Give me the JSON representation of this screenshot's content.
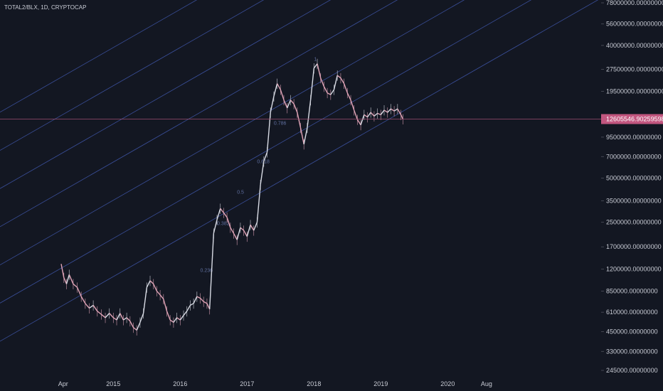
{
  "header": {
    "symbol_line": "TOTAL2/BLX, 1D, CRYPTOCAP"
  },
  "colors": {
    "background": "#131722",
    "channel_line": "#3a4f9a",
    "candle_up": "#d8dbe4",
    "candle_down": "#e2a5b8",
    "price_line": "#9e4f72",
    "price_tag": "#c2567f"
  },
  "current_price": {
    "label": "12605546.90259598",
    "value": 12605546.90259598
  },
  "chart_data": {
    "type": "line",
    "title": "",
    "symbol": "TOTAL2/BLX",
    "interval": "1D",
    "source": "CRYPTOCAP",
    "x_axis_labels": [
      "Apr",
      "2015",
      "2016",
      "2017",
      "2018",
      "2019",
      "2020",
      "Aug"
    ],
    "y_axis_labels": [
      "78000000.00000000",
      "56000000.00000000",
      "40000000.00000000",
      "27500000.00000000",
      "19500000.00000000",
      "9500000.00000000",
      "7000000.00000000",
      "5000000.00000000",
      "3500000.00000000",
      "2500000.00000000",
      "1700000.00000000",
      "1200000.00000000",
      "850000.00000000",
      "610000.00000000",
      "450000.00000000",
      "330000.00000000",
      "245000.00000000"
    ],
    "y_scale": "log",
    "fib_channel_labels": [
      "0.236",
      "0.382",
      "0.5",
      "0.618",
      "0.786",
      "1"
    ],
    "series": [
      {
        "values": [
          [
            2014.22,
            1300000
          ],
          [
            2014.26,
            1050000
          ],
          [
            2014.3,
            950000
          ],
          [
            2014.34,
            1100000
          ],
          [
            2014.4,
            950000
          ],
          [
            2014.46,
            900000
          ],
          [
            2014.52,
            780000
          ],
          [
            2014.58,
            700000
          ],
          [
            2014.64,
            650000
          ],
          [
            2014.7,
            680000
          ],
          [
            2014.76,
            620000
          ],
          [
            2014.82,
            590000
          ],
          [
            2014.88,
            560000
          ],
          [
            2014.94,
            600000
          ],
          [
            2015.0,
            560000
          ],
          [
            2015.05,
            540000
          ],
          [
            2015.1,
            600000
          ],
          [
            2015.15,
            540000
          ],
          [
            2015.2,
            560000
          ],
          [
            2015.25,
            530000
          ],
          [
            2015.3,
            480000
          ],
          [
            2015.35,
            460000
          ],
          [
            2015.4,
            520000
          ],
          [
            2015.45,
            600000
          ],
          [
            2015.5,
            900000
          ],
          [
            2015.55,
            1000000
          ],
          [
            2015.6,
            950000
          ],
          [
            2015.65,
            850000
          ],
          [
            2015.7,
            800000
          ],
          [
            2015.75,
            750000
          ],
          [
            2015.8,
            620000
          ],
          [
            2015.85,
            540000
          ],
          [
            2015.9,
            520000
          ],
          [
            2015.95,
            560000
          ],
          [
            2016.0,
            540000
          ],
          [
            2016.05,
            580000
          ],
          [
            2016.1,
            620000
          ],
          [
            2016.15,
            680000
          ],
          [
            2016.2,
            700000
          ],
          [
            2016.25,
            780000
          ],
          [
            2016.3,
            760000
          ],
          [
            2016.35,
            720000
          ],
          [
            2016.4,
            700000
          ],
          [
            2016.44,
            640000
          ],
          [
            2016.5,
            2100000
          ],
          [
            2016.55,
            2600000
          ],
          [
            2016.6,
            3100000
          ],
          [
            2016.65,
            2900000
          ],
          [
            2016.7,
            2700000
          ],
          [
            2016.75,
            2300000
          ],
          [
            2016.8,
            2100000
          ],
          [
            2016.85,
            1900000
          ],
          [
            2016.9,
            2300000
          ],
          [
            2016.95,
            2200000
          ],
          [
            2017.0,
            2000000
          ],
          [
            2017.05,
            2400000
          ],
          [
            2017.1,
            2200000
          ],
          [
            2017.15,
            2500000
          ],
          [
            2017.2,
            4500000
          ],
          [
            2017.25,
            6500000
          ],
          [
            2017.3,
            7500000
          ],
          [
            2017.35,
            14000000
          ],
          [
            2017.4,
            18000000
          ],
          [
            2017.45,
            22000000
          ],
          [
            2017.5,
            20000000
          ],
          [
            2017.55,
            17000000
          ],
          [
            2017.6,
            15000000
          ],
          [
            2017.65,
            17000000
          ],
          [
            2017.7,
            16000000
          ],
          [
            2017.75,
            14000000
          ],
          [
            2017.8,
            11000000
          ],
          [
            2017.85,
            8500000
          ],
          [
            2017.9,
            11000000
          ],
          [
            2017.95,
            17000000
          ],
          [
            2018.0,
            28000000
          ],
          [
            2018.05,
            30000000
          ],
          [
            2018.1,
            24000000
          ],
          [
            2018.15,
            21000000
          ],
          [
            2018.2,
            19000000
          ],
          [
            2018.25,
            18500000
          ],
          [
            2018.3,
            20000000
          ],
          [
            2018.35,
            25000000
          ],
          [
            2018.4,
            24000000
          ],
          [
            2018.45,
            22000000
          ],
          [
            2018.5,
            19000000
          ],
          [
            2018.55,
            17000000
          ],
          [
            2018.6,
            14500000
          ],
          [
            2018.65,
            12500000
          ],
          [
            2018.7,
            11500000
          ],
          [
            2018.75,
            13500000
          ],
          [
            2018.8,
            13000000
          ],
          [
            2018.85,
            14000000
          ],
          [
            2018.9,
            13200000
          ],
          [
            2018.95,
            13800000
          ],
          [
            2019.0,
            13500000
          ],
          [
            2019.05,
            14500000
          ],
          [
            2019.1,
            14000000
          ],
          [
            2019.15,
            14800000
          ],
          [
            2019.2,
            14300000
          ],
          [
            2019.25,
            14800000
          ],
          [
            2019.3,
            13500000
          ],
          [
            2019.33,
            12605547
          ]
        ]
      }
    ],
    "channel_slope_log10_per_year": 0.26,
    "channel_anchor_log10_at_2014_2": [
      5.82,
      6.08,
      6.34,
      6.6,
      6.86,
      7.12,
      7.38
    ]
  }
}
